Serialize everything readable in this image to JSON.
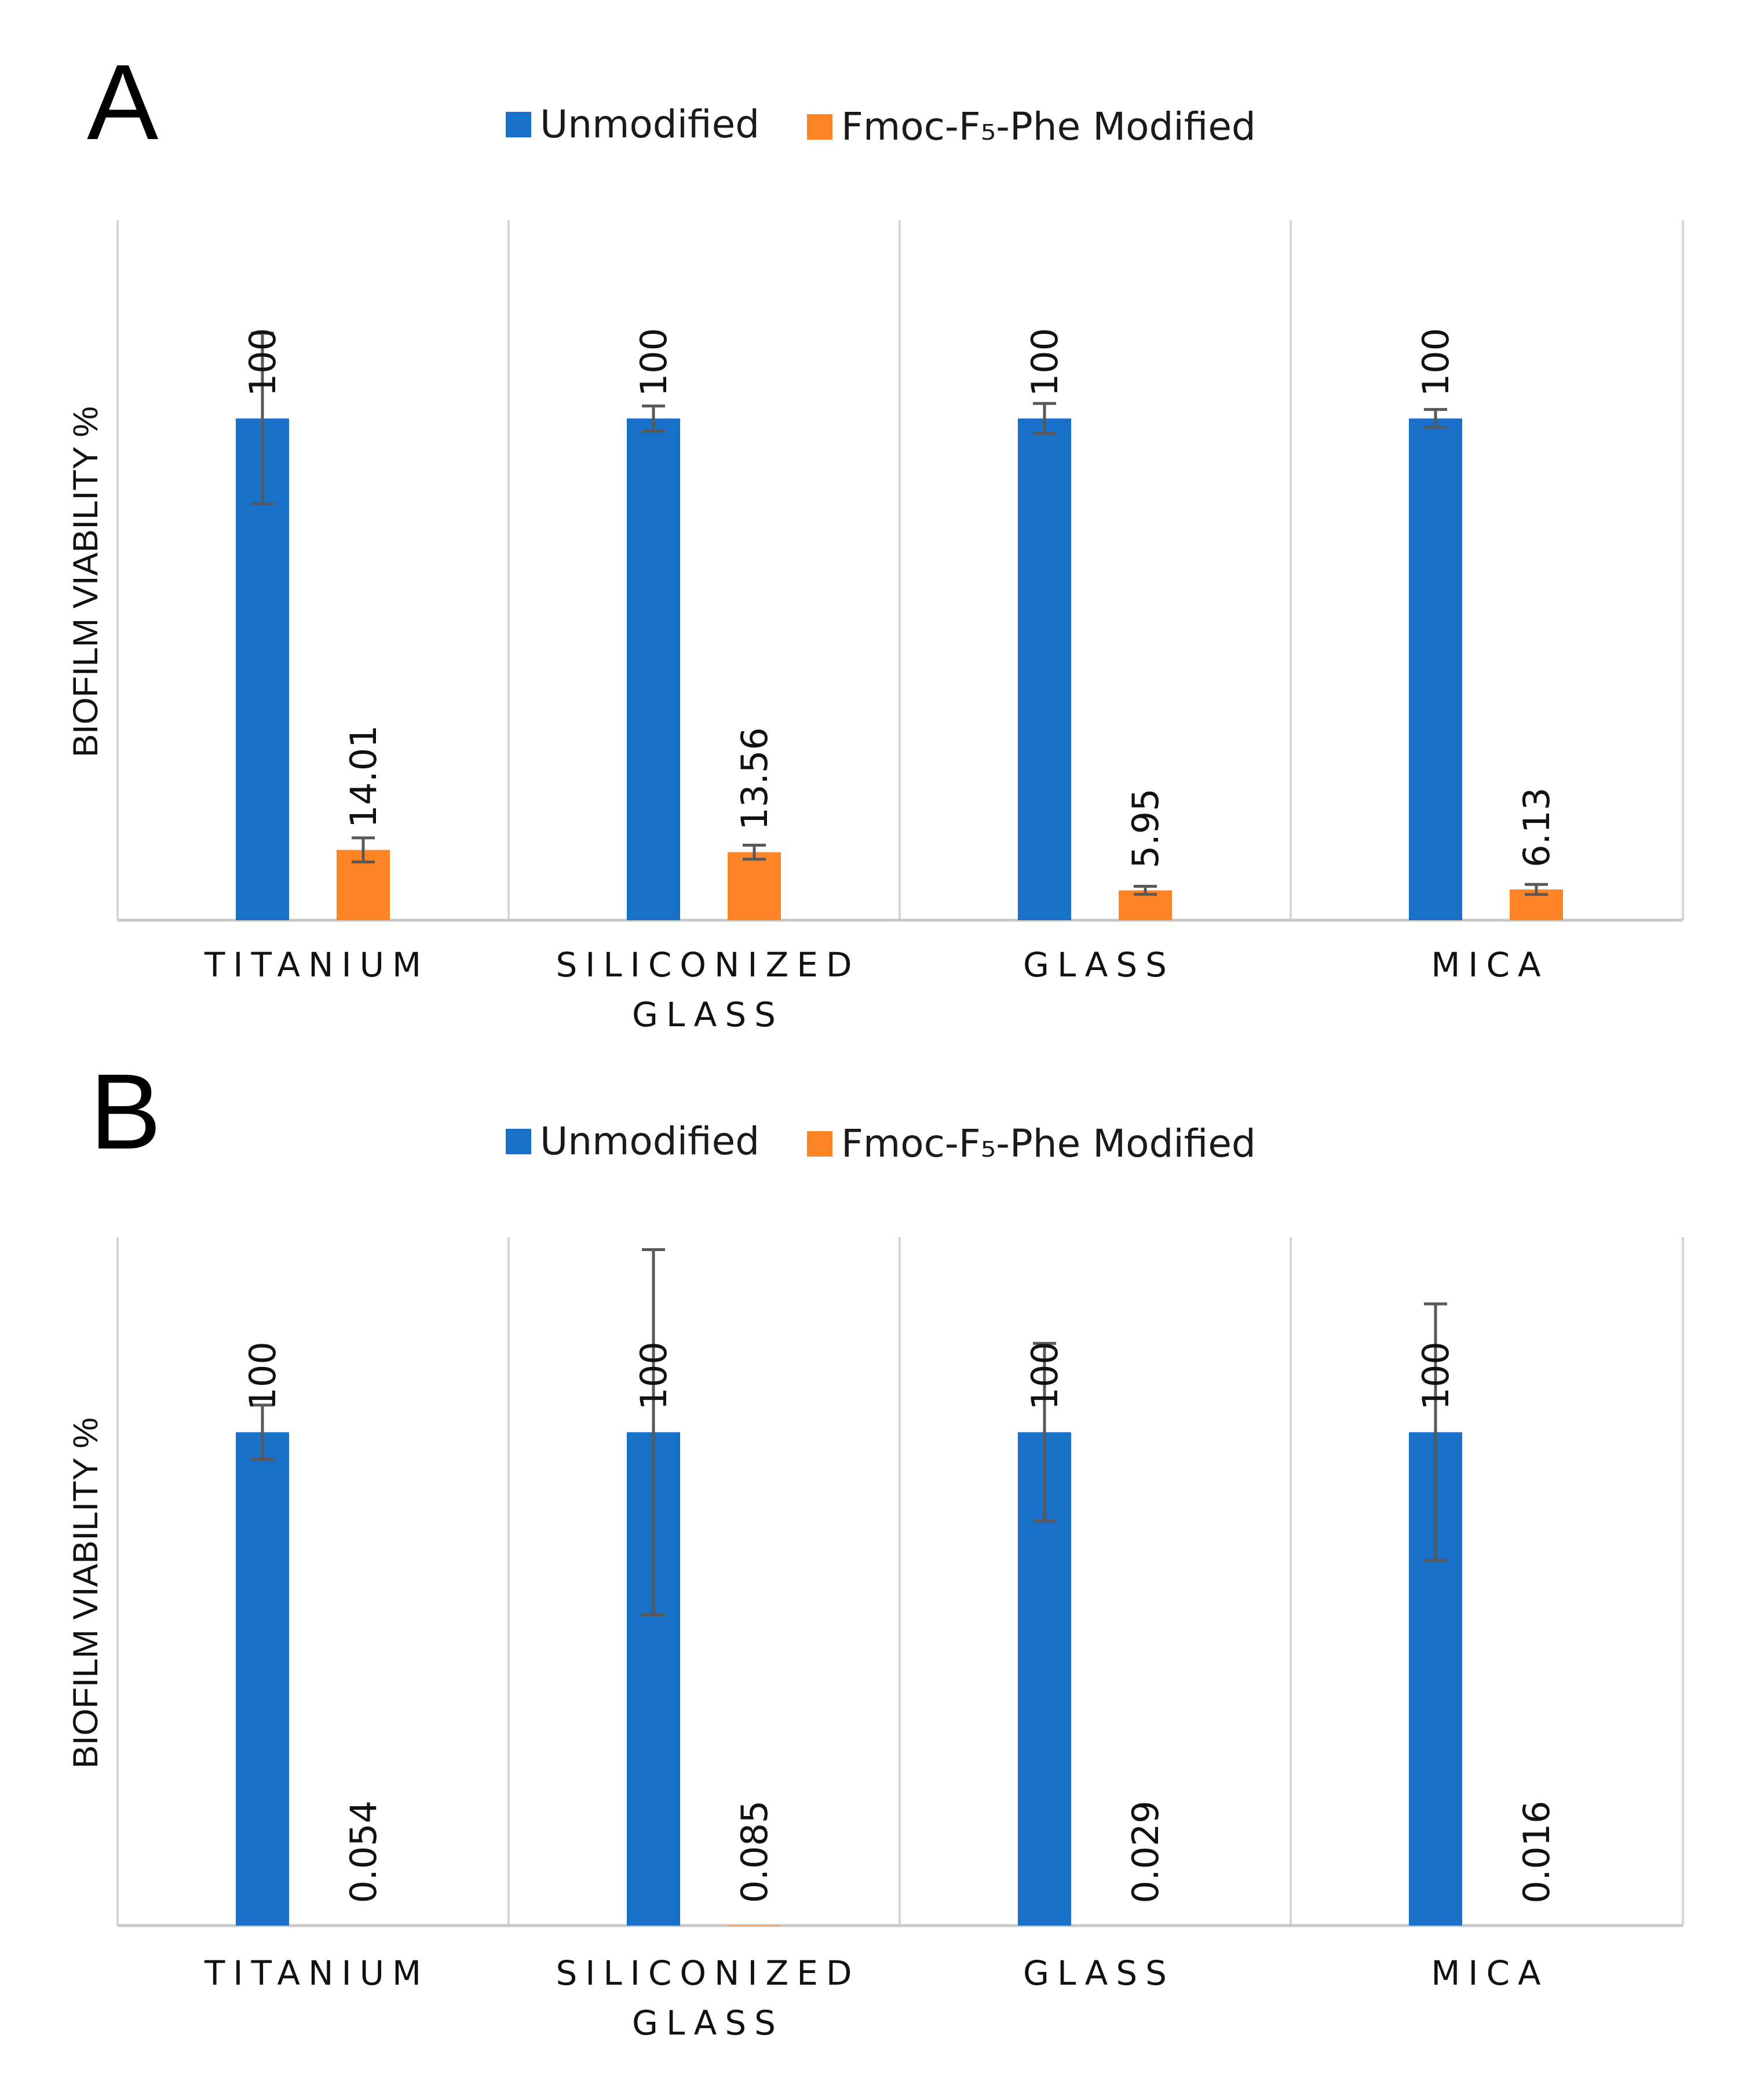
{
  "legend": {
    "unmodified": "Unmodified",
    "modified": "Fmoc-F₅-Phe Modified"
  },
  "colors": {
    "unmodified": "#1870C8",
    "modified": "#FF8426",
    "grid": "#D6D6D6",
    "axis": "#C8C8C8",
    "error_bar": "#595959"
  },
  "chart_data": [
    {
      "panel_label": "A",
      "type": "bar",
      "ylabel": "BIOFILM VIABILITY %",
      "categories": [
        [
          "TITANIUM"
        ],
        [
          "SILICONIZED",
          "GLASS"
        ],
        [
          "GLASS"
        ],
        [
          "MICA"
        ]
      ],
      "ylim": [
        0,
        140
      ],
      "series": [
        {
          "name": "Unmodified",
          "key": "unmodified",
          "values": [
            100,
            100,
            100,
            100
          ],
          "labels": [
            "100",
            "100",
            "100",
            "100"
          ],
          "errors": [
            17,
            2.5,
            3,
            1.8
          ]
        },
        {
          "name": "Fmoc-F5-Phe Modified",
          "key": "modified",
          "values": [
            14.01,
            13.56,
            5.95,
            6.13
          ],
          "labels": [
            "14.01",
            "13.56",
            "5.95",
            "6.13"
          ],
          "errors": [
            2.4,
            1.4,
            0.8,
            1.0
          ]
        }
      ]
    },
    {
      "panel_label": "B",
      "type": "bar",
      "ylabel": "BIOFILM VIABILITY %",
      "categories": [
        [
          "TITANIUM"
        ],
        [
          "SILICONIZED",
          "GLASS"
        ],
        [
          "GLASS"
        ],
        [
          "MICA"
        ]
      ],
      "ylim": [
        0,
        140
      ],
      "series": [
        {
          "name": "Unmodified",
          "key": "unmodified",
          "values": [
            100,
            100,
            100,
            100
          ],
          "labels": [
            "100",
            "100",
            "100",
            "100"
          ],
          "errors": [
            5.5,
            37,
            18,
            26
          ]
        },
        {
          "name": "Fmoc-F5-Phe Modified",
          "key": "modified",
          "values": [
            0.054,
            0.085,
            0.029,
            0.016
          ],
          "labels": [
            "0.054",
            "0.085",
            "0.029",
            "0.016"
          ],
          "errors": [
            0,
            0,
            0,
            0
          ]
        }
      ]
    }
  ]
}
